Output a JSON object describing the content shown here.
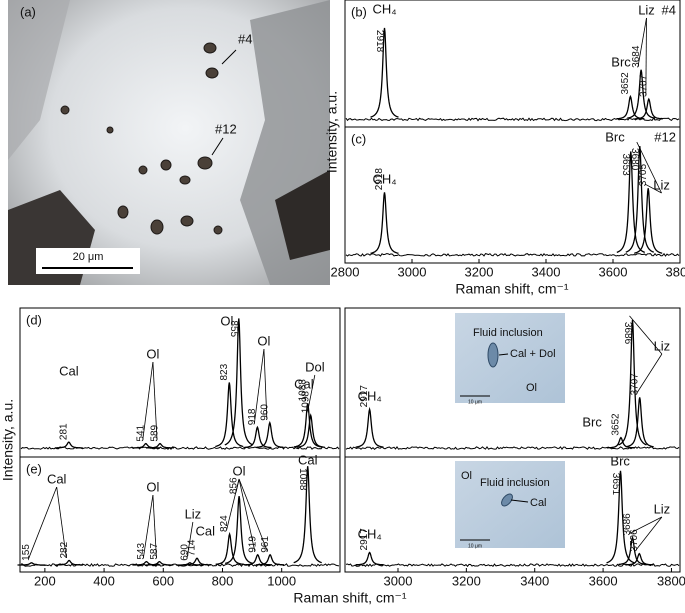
{
  "micrograph": {
    "label": "(a)",
    "inclusions": [
      "#4",
      "#12"
    ],
    "scale_bar": "20 μm"
  },
  "insets": [
    {
      "texts": [
        "Fluid inclusion",
        "Cal + Dol",
        "Ol"
      ],
      "scale_bar": "10 μm"
    },
    {
      "texts": [
        "Ol",
        "Fluid inclusion",
        "Cal"
      ],
      "scale_bar": "10 μm"
    }
  ],
  "chart_data": [
    {
      "type": "spectrum",
      "panel": "(b)",
      "tag": "#4",
      "xlim": [
        2800,
        3800
      ],
      "ylim": [
        0,
        1
      ],
      "peaks": [
        {
          "x": 2918,
          "height": 0.78
        },
        {
          "x": 3652,
          "height": 0.24
        },
        {
          "x": 3684,
          "height": 0.45
        },
        {
          "x": 3707,
          "height": 0.22
        }
      ],
      "annotations": [
        "CH₄",
        "Brc",
        "Liz"
      ]
    },
    {
      "type": "spectrum",
      "panel": "(c)",
      "tag": "#12",
      "xlim": [
        2800,
        3800
      ],
      "ylim": [
        0,
        1
      ],
      "xticks": [
        2800,
        3000,
        3200,
        3400,
        3600,
        3800
      ],
      "x_label": "Raman shift, cm⁻¹",
      "y_label": "Intensity, a.u.",
      "peaks": [
        {
          "x": 2918,
          "height": 0.52
        },
        {
          "x": 3653,
          "height": 0.82
        },
        {
          "x": 3680,
          "height": 0.86
        },
        {
          "x": 3705,
          "height": 0.55
        }
      ],
      "annotations": [
        "CH₄",
        "Brc",
        "Liz"
      ]
    },
    {
      "type": "spectrum",
      "panel": "(d)",
      "xlim": [
        116,
        1197
      ],
      "ylim": [
        0,
        1
      ],
      "peaks": [
        {
          "x": 281,
          "height": 0.1
        },
        {
          "x": 541,
          "height": 0.09
        },
        {
          "x": 589,
          "height": 0.09
        },
        {
          "x": 823,
          "height": 0.5
        },
        {
          "x": 855,
          "height": 0.93
        },
        {
          "x": 918,
          "height": 0.2
        },
        {
          "x": 960,
          "height": 0.23
        },
        {
          "x": 1088,
          "height": 0.36
        },
        {
          "x": 1098,
          "height": 0.28
        }
      ],
      "annotations": [
        "Cal",
        "Ol",
        "Ol",
        "Ol",
        "Cal",
        "Dol"
      ]
    },
    {
      "type": "spectrum",
      "xlim": [
        2845,
        3825
      ],
      "ylim": [
        0,
        1
      ],
      "peaks": [
        {
          "x": 2917,
          "height": 0.32
        },
        {
          "x": 3652,
          "height": 0.13
        },
        {
          "x": 3686,
          "height": 0.92
        },
        {
          "x": 3707,
          "height": 0.4
        }
      ],
      "annotations": [
        "CH₄",
        "Brc",
        "Liz"
      ]
    },
    {
      "type": "spectrum",
      "panel": "(e)",
      "xlim": [
        116,
        1197
      ],
      "ylim": [
        0,
        1
      ],
      "xticks": [
        200,
        400,
        600,
        800,
        1000
      ],
      "x_label": "Raman shift, cm⁻¹",
      "y_label": "Intensity, a.u.",
      "peaks": [
        {
          "x": 155,
          "height": 0.08
        },
        {
          "x": 282,
          "height": 0.1
        },
        {
          "x": 543,
          "height": 0.09
        },
        {
          "x": 587,
          "height": 0.09
        },
        {
          "x": 690,
          "height": 0.08
        },
        {
          "x": 714,
          "height": 0.12
        },
        {
          "x": 824,
          "height": 0.33
        },
        {
          "x": 856,
          "height": 0.66
        },
        {
          "x": 919,
          "height": 0.15
        },
        {
          "x": 961,
          "height": 0.15
        },
        {
          "x": 1088,
          "height": 0.92
        }
      ],
      "annotations": [
        "Cal",
        "Ol",
        "Liz",
        "Cal",
        "Ol",
        "Cal"
      ]
    },
    {
      "type": "spectrum",
      "xlim": [
        2845,
        3825
      ],
      "ylim": [
        0,
        1
      ],
      "xticks": [
        3000,
        3200,
        3400,
        3600,
        3800
      ],
      "peaks": [
        {
          "x": 2917,
          "height": 0.17
        },
        {
          "x": 3651,
          "height": 0.88
        },
        {
          "x": 3686,
          "height": 0.3
        },
        {
          "x": 3706,
          "height": 0.16
        }
      ],
      "annotations": [
        "CH₄",
        "Brc",
        "Liz"
      ]
    }
  ]
}
